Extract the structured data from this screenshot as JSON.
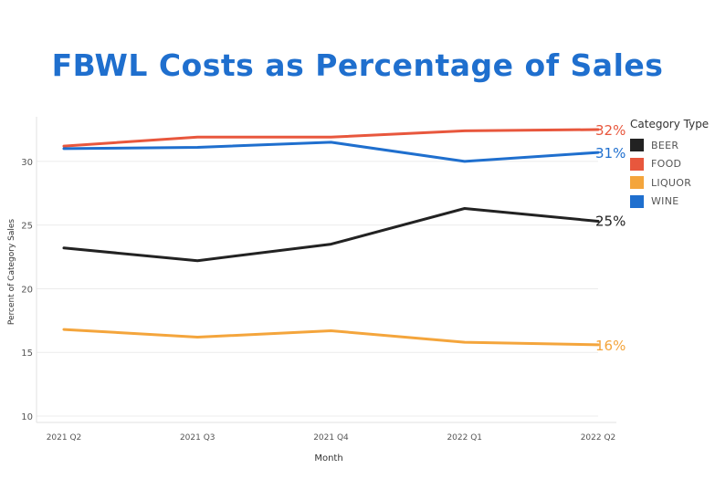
{
  "chart_data": {
    "type": "line",
    "title": "FBWL Costs as Percentage of Sales",
    "xlabel": "Month",
    "ylabel": "Percent of Category Sales",
    "categories": [
      "2021 Q2",
      "2021 Q3",
      "2021 Q4",
      "2022 Q1",
      "2022 Q2"
    ],
    "yticks": [
      10,
      15,
      20,
      25,
      30
    ],
    "ylim": [
      9.5,
      33.5
    ],
    "grid": true,
    "legend_title": "Category Type",
    "legend_position": "right",
    "series": [
      {
        "name": "BEER",
        "color": "#222222",
        "values": [
          23.2,
          22.2,
          23.5,
          26.3,
          25.3
        ],
        "end_label": "25%"
      },
      {
        "name": "FOOD",
        "color": "#e8573d",
        "values": [
          31.2,
          31.9,
          31.9,
          32.4,
          32.5
        ],
        "end_label": "32%"
      },
      {
        "name": "LIQUOR",
        "color": "#f4a53c",
        "values": [
          16.8,
          16.2,
          16.7,
          15.8,
          15.6
        ],
        "end_label": "16%"
      },
      {
        "name": "WINE",
        "color": "#1f6fce",
        "values": [
          31.0,
          31.1,
          31.5,
          30.0,
          30.7
        ],
        "end_label": "31%"
      }
    ]
  }
}
